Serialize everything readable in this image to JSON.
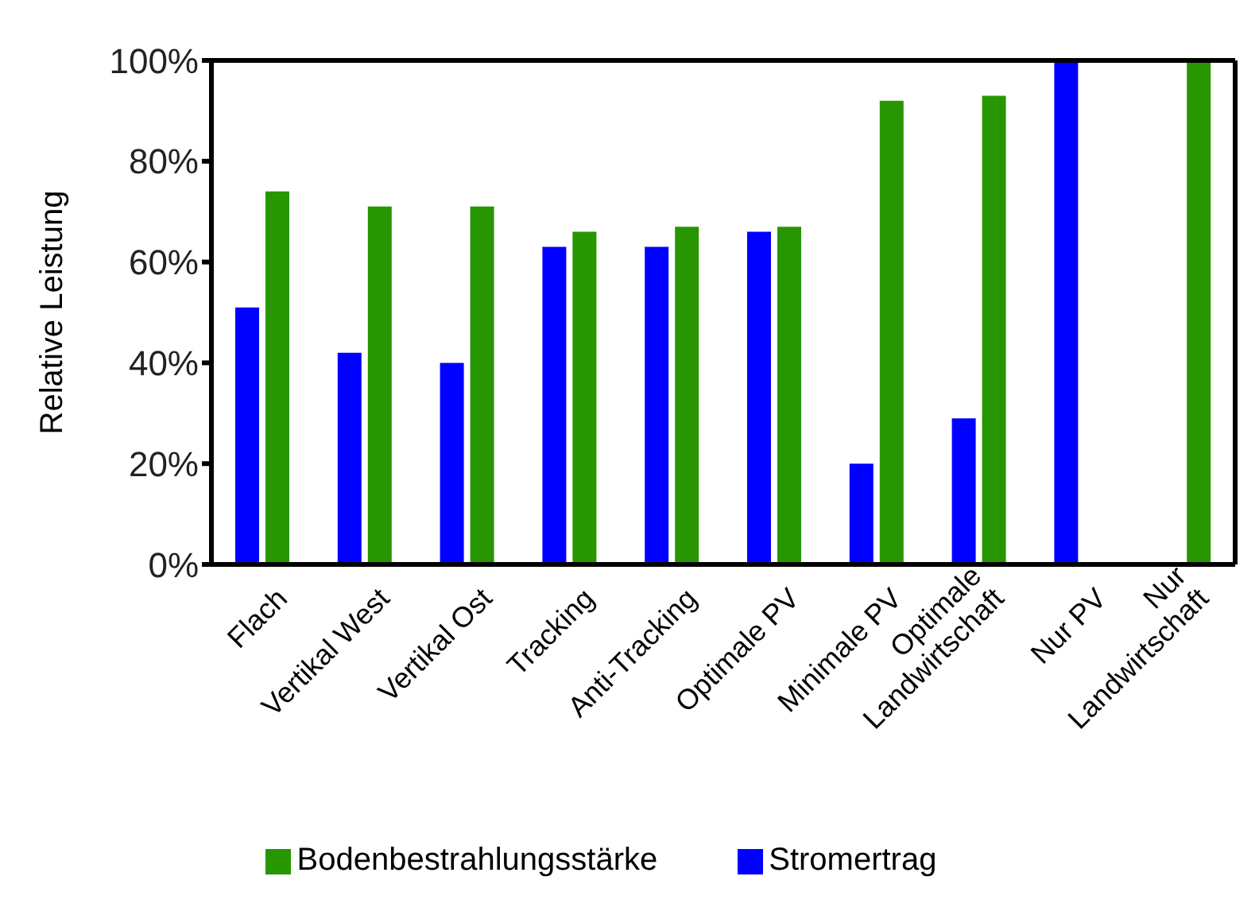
{
  "chart_data": {
    "type": "bar",
    "ylabel": "Relative Leistung",
    "categories": [
      "Flach",
      "Vertikal West",
      "Vertikal Ost",
      "Tracking",
      "Anti-Tracking",
      "Optimale PV",
      "Minimale PV",
      "Optimale\nLandwirtschaft",
      "Nur PV",
      "Nur\nLandwirtschaft"
    ],
    "series": [
      {
        "name": "Stromertrag",
        "color": "#0000ff",
        "values": [
          51,
          42,
          40,
          63,
          63,
          66,
          20,
          29,
          100,
          0
        ]
      },
      {
        "name": "Bodenbestrahlungsstärke",
        "color": "#279600",
        "values": [
          74,
          71,
          71,
          66,
          67,
          67,
          92,
          93,
          0,
          100
        ]
      }
    ],
    "ylim": [
      0,
      100
    ],
    "yticks": [
      {
        "value": 0,
        "label": "0%"
      },
      {
        "value": 20,
        "label": "20%"
      },
      {
        "value": 40,
        "label": "40%"
      },
      {
        "value": 60,
        "label": "60%"
      },
      {
        "value": 80,
        "label": "80%"
      },
      {
        "value": 100,
        "label": "100%"
      }
    ],
    "grid": false,
    "legend": "bottom"
  }
}
